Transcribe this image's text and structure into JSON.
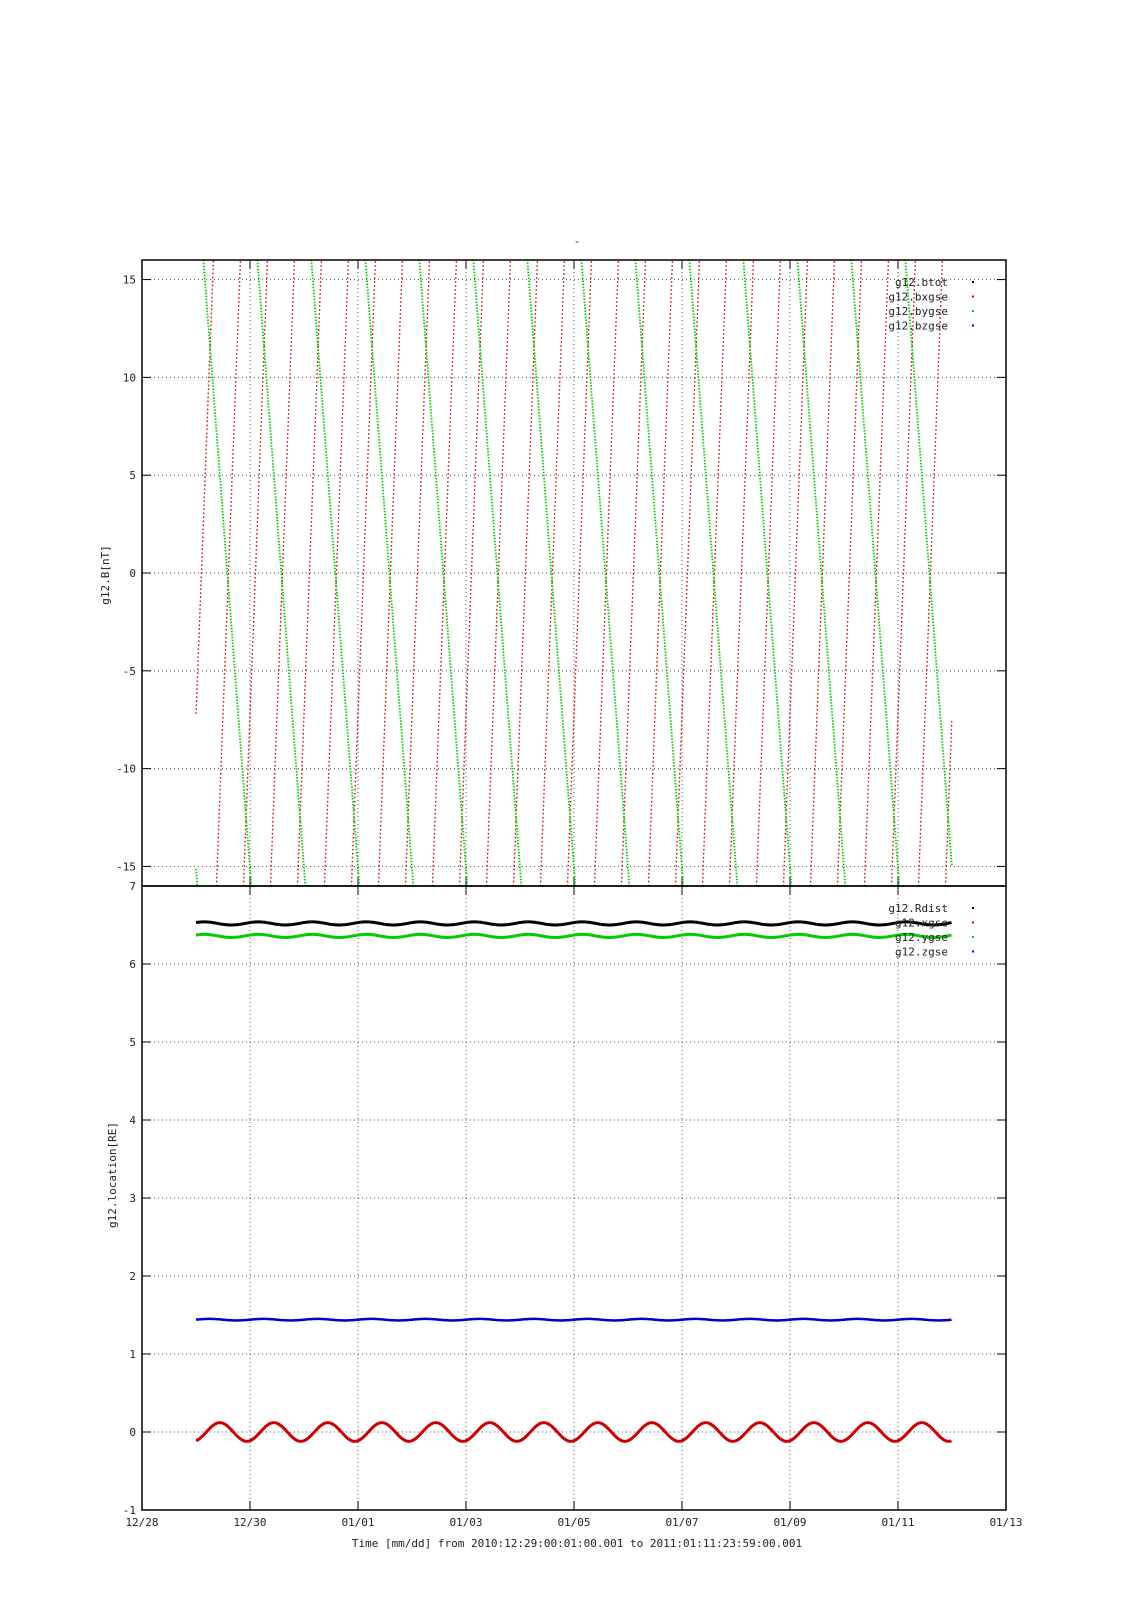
{
  "chart_data": [
    {
      "type": "line",
      "title": "-",
      "ylabel": "g12.B[nT]",
      "xlabel": "",
      "xlim": [
        "12/28",
        "01/13"
      ],
      "ylim": [
        -16,
        16
      ],
      "grid": true,
      "legend_placement": "top-right",
      "yticks": [
        "15",
        "10",
        "5",
        "0",
        "-5",
        "-10",
        "-15"
      ],
      "x_range_days": [
        "2010-12-29T00:01",
        "2011-01-11T23:59"
      ],
      "series": [
        {
          "name": "g12.btot",
          "color": "#000000",
          "values": [],
          "note_visible": "off-scale"
        },
        {
          "name": "g12.bxgse",
          "color": "#cc0000",
          "pattern": "sawtooth rising to top, 2 cycles per day",
          "values_range": [
            -16,
            16
          ]
        },
        {
          "name": "g12.bygse",
          "color": "#00cc00",
          "pattern": "sawtooth falling, 1 cycle per day",
          "values_range": [
            -16,
            16
          ]
        },
        {
          "name": "g12.bzgse",
          "color": "#0000cc",
          "values": []
        }
      ]
    },
    {
      "type": "line",
      "ylabel": "g12.location[RE]",
      "xlabel": "Time [mm/dd]  from 2010:12:29:00:01:00.001  to  2011:01:11:23:59:00.001",
      "xlim": [
        "12/28",
        "01/13"
      ],
      "ylim": [
        -1,
        7
      ],
      "grid": true,
      "legend_placement": "top-right",
      "xticks": [
        "12/28",
        "12/30",
        "01/01",
        "01/03",
        "01/05",
        "01/07",
        "01/09",
        "01/11",
        "01/13"
      ],
      "yticks": [
        "7",
        "6",
        "5",
        "4",
        "3",
        "2",
        "1",
        "0",
        "-1"
      ],
      "series": [
        {
          "name": "g12.Rdist",
          "color": "#000000",
          "mean": 6.52,
          "amplitude": 0.02
        },
        {
          "name": "g12.xgse",
          "color": "#cc0000",
          "mean": 0.0,
          "amplitude": 0.12
        },
        {
          "name": "g12.ygse",
          "color": "#00cc00",
          "mean": 6.36,
          "amplitude": 0.02
        },
        {
          "name": "g12.zgse",
          "color": "#0000cc",
          "mean": 1.44,
          "amplitude": 0.01
        }
      ]
    }
  ]
}
